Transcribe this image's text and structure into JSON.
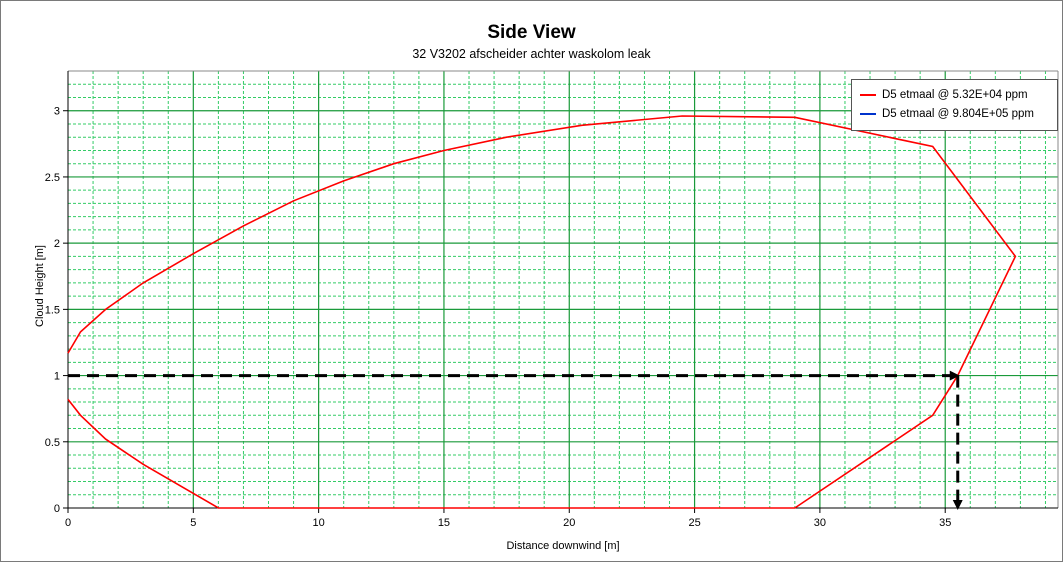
{
  "chart_data": {
    "type": "line",
    "title": "Side View",
    "subtitle": "32 V3202 afscheider achter waskolom leak",
    "xlabel": "Distance downwind [m]",
    "ylabel": "Cloud Height [m]",
    "xlim": [
      0,
      39.5
    ],
    "ylim": [
      0,
      3.3
    ],
    "xticks": [
      "0",
      "5",
      "10",
      "15",
      "20",
      "25",
      "30",
      "35"
    ],
    "yticks": [
      "0",
      "0.5",
      "1",
      "1.5",
      "2",
      "2.5",
      "3"
    ],
    "grid": true,
    "legend_position": "top-right",
    "series": [
      {
        "name": "D5 etmaal @ 5.32E+04 ppm",
        "color": "#ff0000",
        "x": [
          0,
          0.5,
          1.5,
          3,
          5,
          7,
          9,
          11,
          13,
          15,
          17.5,
          20.5,
          24.5,
          29,
          34.5,
          37.8,
          35.5,
          34.5,
          29,
          24,
          20,
          15,
          10,
          6,
          3,
          1.5,
          0.5,
          0
        ],
        "y": [
          1.17,
          1.33,
          1.5,
          1.7,
          1.92,
          2.13,
          2.32,
          2.47,
          2.6,
          2.7,
          2.8,
          2.89,
          2.96,
          2.95,
          2.73,
          1.9,
          1.0,
          0.7,
          0,
          0,
          0,
          0,
          0,
          0,
          0.33,
          0.52,
          0.7,
          0.82
        ]
      },
      {
        "name": "D5 etmaal @ 9.804E+05 ppm",
        "color": "#0033cc",
        "x": [],
        "y": []
      }
    ],
    "annotations": [
      {
        "type": "dashed-arrow",
        "color": "#000000",
        "from": [
          0,
          1
        ],
        "to": [
          35.5,
          1
        ]
      },
      {
        "type": "dashed-arrow",
        "color": "#000000",
        "from": [
          35.5,
          1
        ],
        "to": [
          35.5,
          0
        ]
      }
    ]
  }
}
